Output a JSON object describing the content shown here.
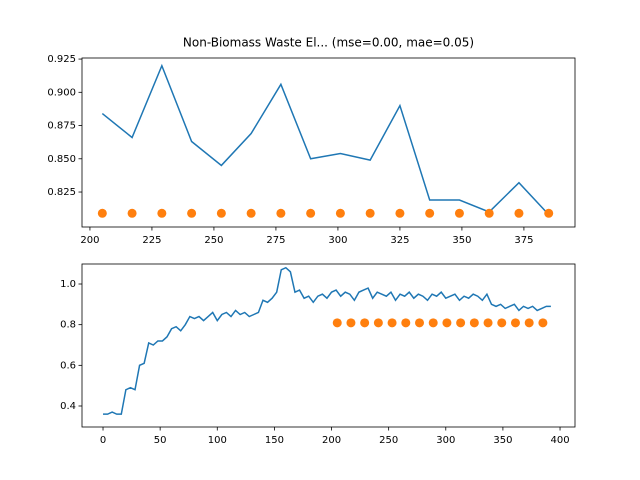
{
  "chart_data": [
    {
      "type": "line",
      "title": "Non-Biomass Waste El... (mse=0.00, mae=0.05)",
      "xlim": [
        196.8,
        395.6
      ],
      "ylim": [
        0.7987,
        0.9258
      ],
      "xticks": [
        200,
        225,
        250,
        275,
        300,
        325,
        350,
        375
      ],
      "yticks": [
        0.825,
        {
          "value": 0.85,
          "label": "0.850"
        },
        0.875,
        {
          "value": 0.9,
          "label": "0.900"
        },
        0.925
      ],
      "series": [
        {
          "type": "line",
          "color": "#1f77b4",
          "x": [
            205,
            217,
            229,
            241,
            253,
            265,
            277,
            289,
            301,
            313,
            325,
            337,
            349,
            361,
            373,
            385
          ],
          "values": [
            0.884,
            0.866,
            0.92,
            0.863,
            0.845,
            0.869,
            0.906,
            0.85,
            0.854,
            0.849,
            0.89,
            0.819,
            0.819,
            0.81,
            0.832,
            0.808
          ]
        },
        {
          "type": "scatter",
          "color": "#ff7f0e",
          "x": [
            205,
            217,
            229,
            241,
            253,
            265,
            277,
            289,
            301,
            313,
            325,
            337,
            349,
            361,
            373,
            385
          ],
          "values": [
            0.809,
            0.809,
            0.809,
            0.809,
            0.809,
            0.809,
            0.809,
            0.809,
            0.809,
            0.809,
            0.809,
            0.809,
            0.809,
            0.809,
            0.809,
            0.809
          ]
        }
      ]
    },
    {
      "type": "line",
      "xlim": [
        -18.4,
        413.1
      ],
      "ylim": [
        0.2967,
        1.0984
      ],
      "xticks": [
        0,
        50,
        100,
        150,
        200,
        250,
        300,
        350,
        400
      ],
      "yticks": [
        0.4,
        0.6,
        0.8,
        {
          "value": 1,
          "label": "1.0"
        }
      ],
      "series": [
        {
          "type": "line",
          "color": "#1f77b4",
          "x": [
            0,
            4,
            8,
            12,
            16,
            20,
            24,
            28,
            32,
            36,
            40,
            44,
            48,
            52,
            56,
            60,
            64,
            68,
            72,
            76,
            80,
            84,
            88,
            92,
            96,
            100,
            104,
            108,
            112,
            116,
            120,
            124,
            128,
            132,
            136,
            140,
            144,
            148,
            152,
            156,
            160,
            164,
            168,
            172,
            176,
            180,
            184,
            188,
            192,
            196,
            200,
            204,
            208,
            212,
            216,
            220,
            224,
            228,
            232,
            236,
            240,
            244,
            248,
            252,
            256,
            260,
            264,
            268,
            272,
            276,
            280,
            284,
            288,
            292,
            296,
            300,
            304,
            308,
            312,
            316,
            320,
            324,
            328,
            332,
            336,
            340,
            344,
            348,
            352,
            356,
            360,
            364,
            368,
            372,
            376,
            380,
            384,
            388,
            392
          ],
          "values": [
            0.36,
            0.36,
            0.37,
            0.36,
            0.36,
            0.48,
            0.49,
            0.48,
            0.6,
            0.61,
            0.71,
            0.7,
            0.72,
            0.72,
            0.74,
            0.78,
            0.79,
            0.77,
            0.8,
            0.84,
            0.83,
            0.84,
            0.82,
            0.84,
            0.86,
            0.82,
            0.85,
            0.86,
            0.84,
            0.87,
            0.85,
            0.86,
            0.84,
            0.85,
            0.86,
            0.92,
            0.91,
            0.93,
            0.96,
            1.07,
            1.08,
            1.06,
            0.96,
            0.97,
            0.93,
            0.94,
            0.91,
            0.94,
            0.95,
            0.93,
            0.96,
            0.97,
            0.94,
            0.96,
            0.95,
            0.92,
            0.96,
            0.97,
            0.98,
            0.93,
            0.96,
            0.95,
            0.94,
            0.96,
            0.92,
            0.95,
            0.94,
            0.96,
            0.93,
            0.95,
            0.94,
            0.92,
            0.95,
            0.94,
            0.96,
            0.93,
            0.94,
            0.95,
            0.92,
            0.94,
            0.93,
            0.95,
            0.94,
            0.92,
            0.95,
            0.9,
            0.89,
            0.9,
            0.88,
            0.89,
            0.9,
            0.87,
            0.89,
            0.88,
            0.89,
            0.87,
            0.88,
            0.89,
            0.89
          ]
        },
        {
          "type": "scatter",
          "color": "#ff7f0e",
          "x": [
            205,
            217,
            229,
            241,
            253,
            265,
            277,
            289,
            301,
            313,
            325,
            337,
            349,
            361,
            373,
            385
          ],
          "values": [
            0.809,
            0.809,
            0.809,
            0.809,
            0.809,
            0.809,
            0.809,
            0.809,
            0.809,
            0.809,
            0.809,
            0.809,
            0.809,
            0.809,
            0.809,
            0.809
          ]
        }
      ]
    }
  ]
}
